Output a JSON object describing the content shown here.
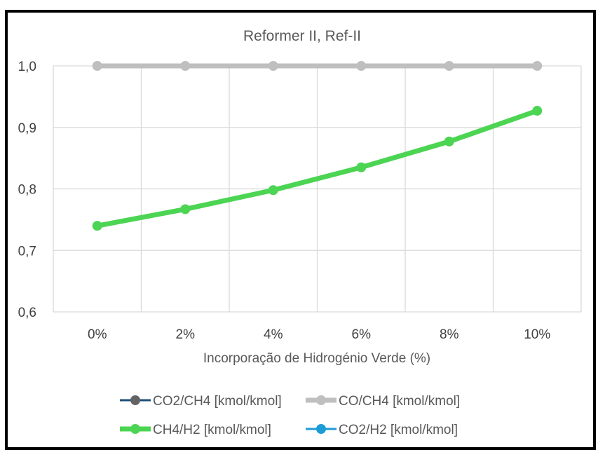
{
  "chart_data": {
    "type": "line",
    "title": "Reformer II, Ref-II",
    "xlabel": "Incorporação de Hidrogénio Verde (%)",
    "ylabel": "",
    "categories": [
      "0%",
      "2%",
      "4%",
      "6%",
      "8%",
      "10%"
    ],
    "ylim": [
      0.6,
      1.0
    ],
    "yticks": [
      0.6,
      0.7,
      0.8,
      0.9,
      1.0
    ],
    "ytick_labels": [
      "0,6",
      "0,7",
      "0,8",
      "0,9",
      "1,0"
    ],
    "grid": true,
    "legend_position": "bottom",
    "series": [
      {
        "name": "CO2/CH4 [kmol/kmol]",
        "color": "#636363",
        "line_color": "#1f4e79",
        "values": [
          null,
          null,
          null,
          null,
          null,
          null
        ]
      },
      {
        "name": "CO/CH4 [kmol/kmol]",
        "color": "#bfbfbf",
        "line_color": "#bfbfbf",
        "values": [
          1.0,
          1.0,
          1.0,
          1.0,
          1.0,
          1.0
        ]
      },
      {
        "name": "CH4/H2 [kmol/kmol]",
        "color": "#4cd453",
        "line_color": "#4cd453",
        "values": [
          0.74,
          0.767,
          0.798,
          0.835,
          0.877,
          0.927
        ]
      },
      {
        "name": "CO2/H2 [kmol/kmol]",
        "color": "#1d9bd7",
        "line_color": "#1d9bd7",
        "values": [
          null,
          null,
          null,
          null,
          null,
          null
        ]
      }
    ]
  }
}
